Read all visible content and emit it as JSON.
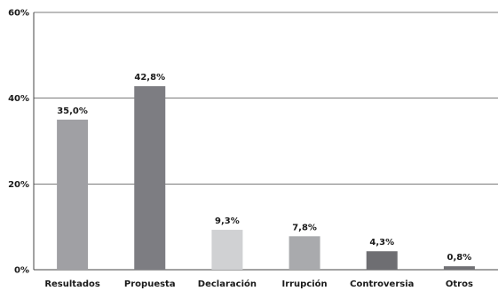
{
  "chart_data": {
    "type": "bar",
    "categories": [
      "Resultados",
      "Propuesta",
      "Declaración",
      "Irrupción",
      "Controversia",
      "Otros"
    ],
    "values": [
      35.0,
      42.8,
      9.3,
      7.8,
      4.3,
      0.8
    ],
    "value_labels": [
      "35,0%",
      "42,8%",
      "9,3%",
      "7,8%",
      "4,3%",
      "0,8%"
    ],
    "colors": [
      "#a0a0a4",
      "#7d7d82",
      "#d0d1d3",
      "#a9aaad",
      "#6e6e72",
      "#707074"
    ],
    "yticks": [
      0,
      20,
      40,
      60
    ],
    "ytick_labels": [
      "0%",
      "20%",
      "40%",
      "60%"
    ],
    "ylim": [
      0,
      60
    ],
    "grid": true,
    "legend": "none"
  }
}
